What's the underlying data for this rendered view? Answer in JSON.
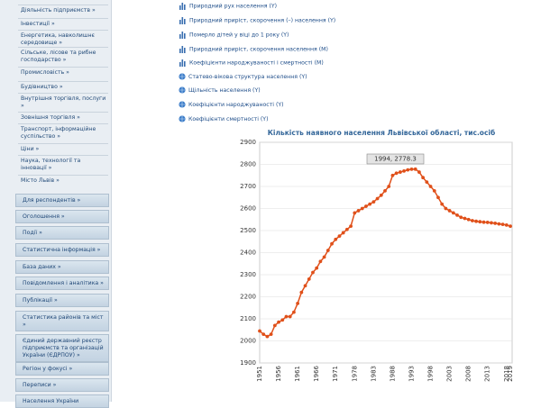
{
  "sidebar": {
    "menu": [
      "Діяльність підприємств »",
      "Інвестиції »",
      "Енергетика, навколишнє середовище »",
      "Сільське, лісове та рибне господарство »",
      "Промисловість »",
      "Будівництво »",
      "Внутрішня торгівля, послуги »",
      "Зовнішня торгівля »",
      "Транспорт, інформаційне суспільство »",
      "Ціни »",
      "Наука, технології та інновації »",
      "Місто Львів »"
    ],
    "buttons": [
      "Для респондентів »",
      "Оголошення »",
      "Події »",
      "Статистична інформація »",
      "База даних »",
      "Повідомлення і аналітика »",
      "Публікації »",
      "Статистика районів та міст »",
      "Єдиний державний реєстр підприємств та організацій України (ЄДРПОУ) »",
      "Регіон у фокусі »",
      "Переписи »",
      "Населення України"
    ]
  },
  "links": [
    "Природний рух населення (Y)",
    "Природний приріст, скорочення (–) населення (Y)",
    "Померло дітей у віці до 1 року (Y)",
    "Природний приріст, скорочення населення (M)",
    "Коефіцієнти народжуваності і смертності (M)",
    "Статево-вікова структура населення (Y)",
    "Щільність населення (Y)",
    "Коефіцієнти народжуваності (Y)",
    "Коефіцієнти смертності (Y)"
  ],
  "chart_data": {
    "type": "line",
    "title": "Кількість наявного населення Львівської області, тис.осіб",
    "categories": [
      "1951",
      null,
      null,
      null,
      null,
      "1956",
      null,
      null,
      null,
      null,
      "1961",
      null,
      null,
      null,
      null,
      "1966",
      null,
      null,
      null,
      null,
      "1971",
      null,
      null,
      null,
      null,
      "1978",
      null,
      null,
      null,
      null,
      "1983",
      null,
      null,
      null,
      null,
      "1988",
      null,
      null,
      null,
      null,
      "1993",
      null,
      null,
      null,
      null,
      "1998",
      null,
      null,
      null,
      null,
      "2003",
      null,
      null,
      null,
      null,
      "2008",
      null,
      null,
      null,
      null,
      "2013",
      null,
      null,
      null,
      null,
      "2018",
      "2019"
    ],
    "series": [
      {
        "color": "#e0501a",
        "values": [
          2045,
          2030,
          2020,
          2030,
          2070,
          2085,
          2095,
          2110,
          2110,
          2130,
          2170,
          2220,
          2250,
          2280,
          2310,
          2330,
          2360,
          2380,
          2410,
          2440,
          2460,
          2475,
          2490,
          2505,
          2520,
          2580,
          2590,
          2600,
          2610,
          2620,
          2630,
          2645,
          2660,
          2680,
          2700,
          2750,
          2760,
          2765,
          2770,
          2775,
          2778,
          2778.3,
          2765,
          2740,
          2720,
          2700,
          2680,
          2650,
          2620,
          2600,
          2590,
          2580,
          2570,
          2560,
          2555,
          2550,
          2545,
          2542,
          2540,
          2538,
          2537,
          2535,
          2533,
          2530,
          2528,
          2525,
          2520
        ]
      }
    ],
    "ylim": [
      1900,
      2900
    ],
    "yticks": [
      1900,
      2000,
      2100,
      2200,
      2300,
      2400,
      2500,
      2600,
      2700,
      2800,
      2900
    ],
    "grid": true,
    "tooltip": "1994, 2778.3"
  }
}
